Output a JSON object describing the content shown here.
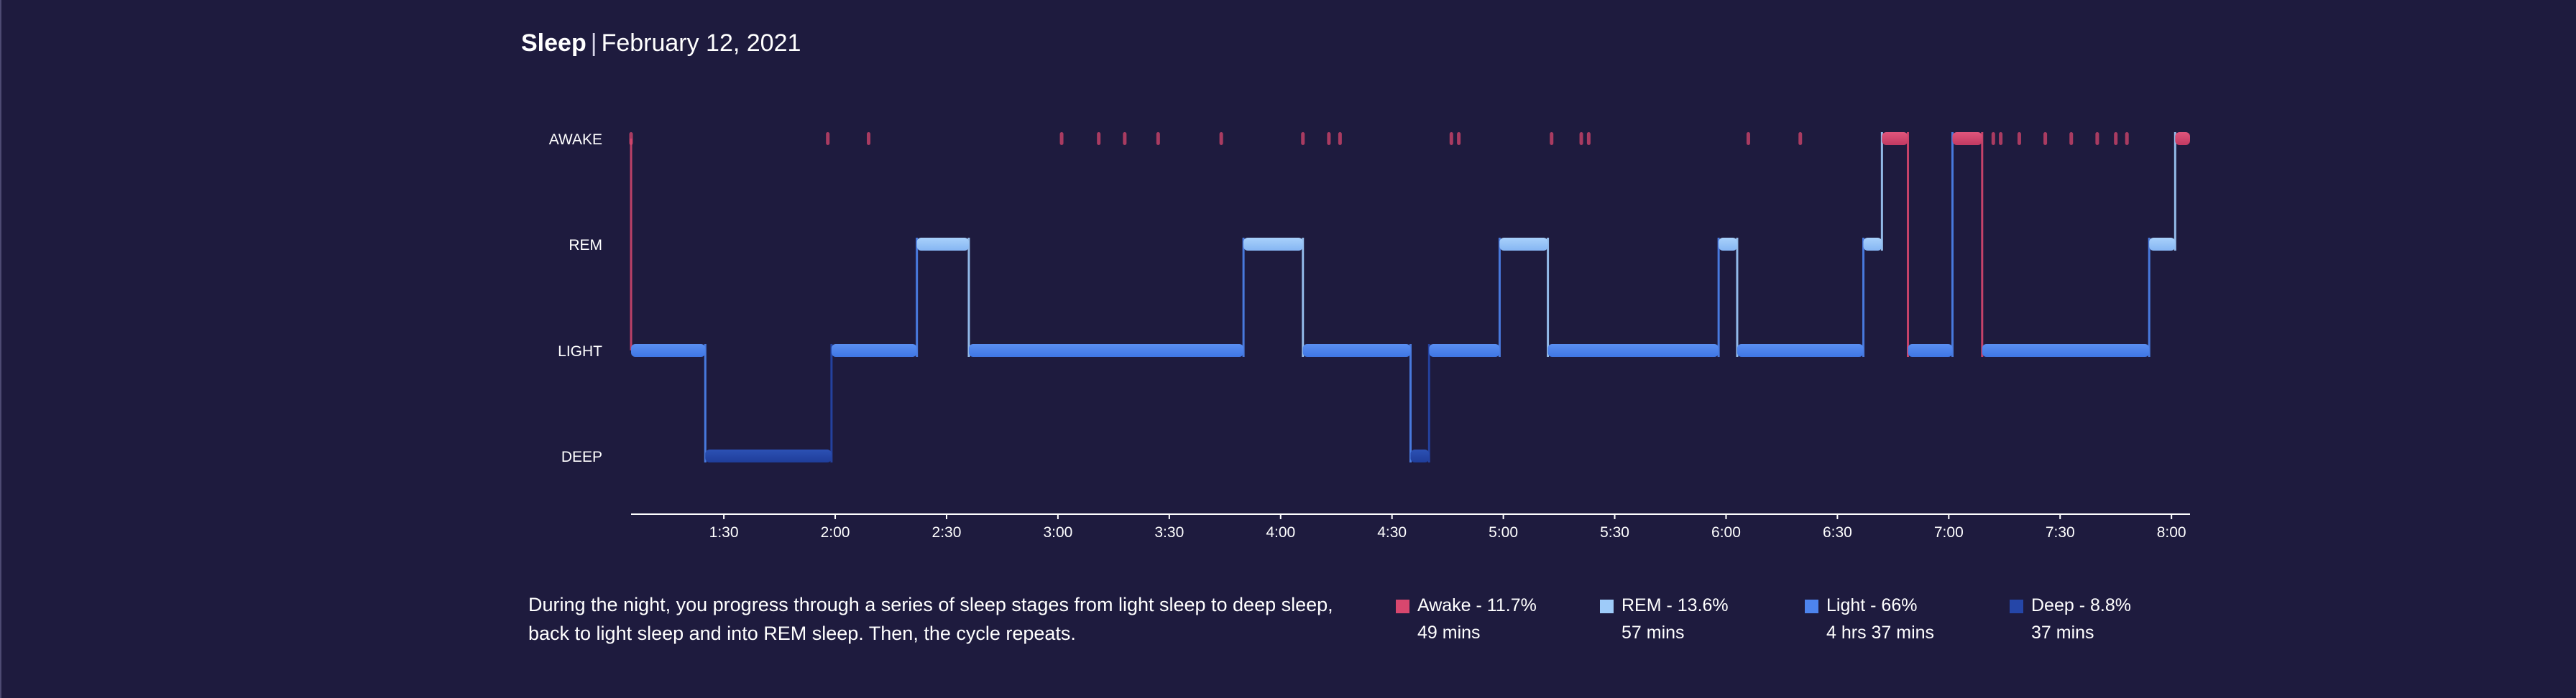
{
  "header": {
    "title": "Sleep",
    "separator": "|",
    "date": "February 12, 2021"
  },
  "description": "During the night, you progress through a series of sleep stages from light sleep to deep sleep, back to light sleep and into REM sleep. Then, the cycle repeats.",
  "legend": [
    {
      "name": "Awake - 11.7%",
      "duration": "49 mins",
      "color": "#d8476e"
    },
    {
      "name": "REM - 13.6%",
      "duration": "57 mins",
      "color": "#9ecbf9"
    },
    {
      "name": "Light - 66%",
      "duration": "4 hrs 37 mins",
      "color": "#4d84ee"
    },
    {
      "name": "Deep - 8.8%",
      "duration": "37 mins",
      "color": "#2546a8"
    }
  ],
  "chart_data": {
    "type": "area",
    "title": "",
    "xlabel": "",
    "ylabel": "",
    "x_range": [
      "1:05",
      "8:05"
    ],
    "x_ticks": [
      "1:30",
      "2:00",
      "2:30",
      "3:00",
      "3:30",
      "4:00",
      "4:30",
      "5:00",
      "5:30",
      "6:00",
      "6:30",
      "7:00",
      "7:30",
      "8:00"
    ],
    "y_categories": [
      "AWAKE",
      "REM",
      "LIGHT",
      "DEEP"
    ],
    "grid": false,
    "legend_placement": "bottom",
    "colors": {
      "AWAKE": "#d8476e",
      "REM": "#9ecbf9",
      "LIGHT": "#4d84ee",
      "DEEP": "#2546a8"
    },
    "segments": [
      {
        "stage": "LIGHT",
        "start": "1:05",
        "end": "1:25"
      },
      {
        "stage": "DEEP",
        "start": "1:25",
        "end": "1:59"
      },
      {
        "stage": "LIGHT",
        "start": "1:59",
        "end": "2:22"
      },
      {
        "stage": "REM",
        "start": "2:22",
        "end": "2:36"
      },
      {
        "stage": "LIGHT",
        "start": "2:36",
        "end": "3:50"
      },
      {
        "stage": "REM",
        "start": "3:50",
        "end": "4:06"
      },
      {
        "stage": "LIGHT",
        "start": "4:06",
        "end": "4:35"
      },
      {
        "stage": "DEEP",
        "start": "4:35",
        "end": "4:40"
      },
      {
        "stage": "LIGHT",
        "start": "4:40",
        "end": "4:59"
      },
      {
        "stage": "REM",
        "start": "4:59",
        "end": "5:12"
      },
      {
        "stage": "LIGHT",
        "start": "5:12",
        "end": "5:58"
      },
      {
        "stage": "REM",
        "start": "5:58",
        "end": "6:03"
      },
      {
        "stage": "LIGHT",
        "start": "6:03",
        "end": "6:37"
      },
      {
        "stage": "REM",
        "start": "6:37",
        "end": "6:42"
      },
      {
        "stage": "AWAKE",
        "start": "6:42",
        "end": "6:49"
      },
      {
        "stage": "LIGHT",
        "start": "6:49",
        "end": "7:01"
      },
      {
        "stage": "AWAKE",
        "start": "7:01",
        "end": "7:09"
      },
      {
        "stage": "LIGHT",
        "start": "7:09",
        "end": "7:54"
      },
      {
        "stage": "REM",
        "start": "7:54",
        "end": "8:01"
      },
      {
        "stage": "AWAKE",
        "start": "8:01",
        "end": "8:05"
      }
    ],
    "brief_awakenings": [
      "1:05",
      "1:58",
      "2:09",
      "3:01",
      "3:11",
      "3:18",
      "3:27",
      "3:44",
      "4:06",
      "4:13",
      "4:16",
      "4:46",
      "4:48",
      "5:13",
      "5:21",
      "5:23",
      "6:06",
      "6:20",
      "7:12",
      "7:14",
      "7:19",
      "7:26",
      "7:33",
      "7:40",
      "7:45",
      "7:48"
    ]
  }
}
